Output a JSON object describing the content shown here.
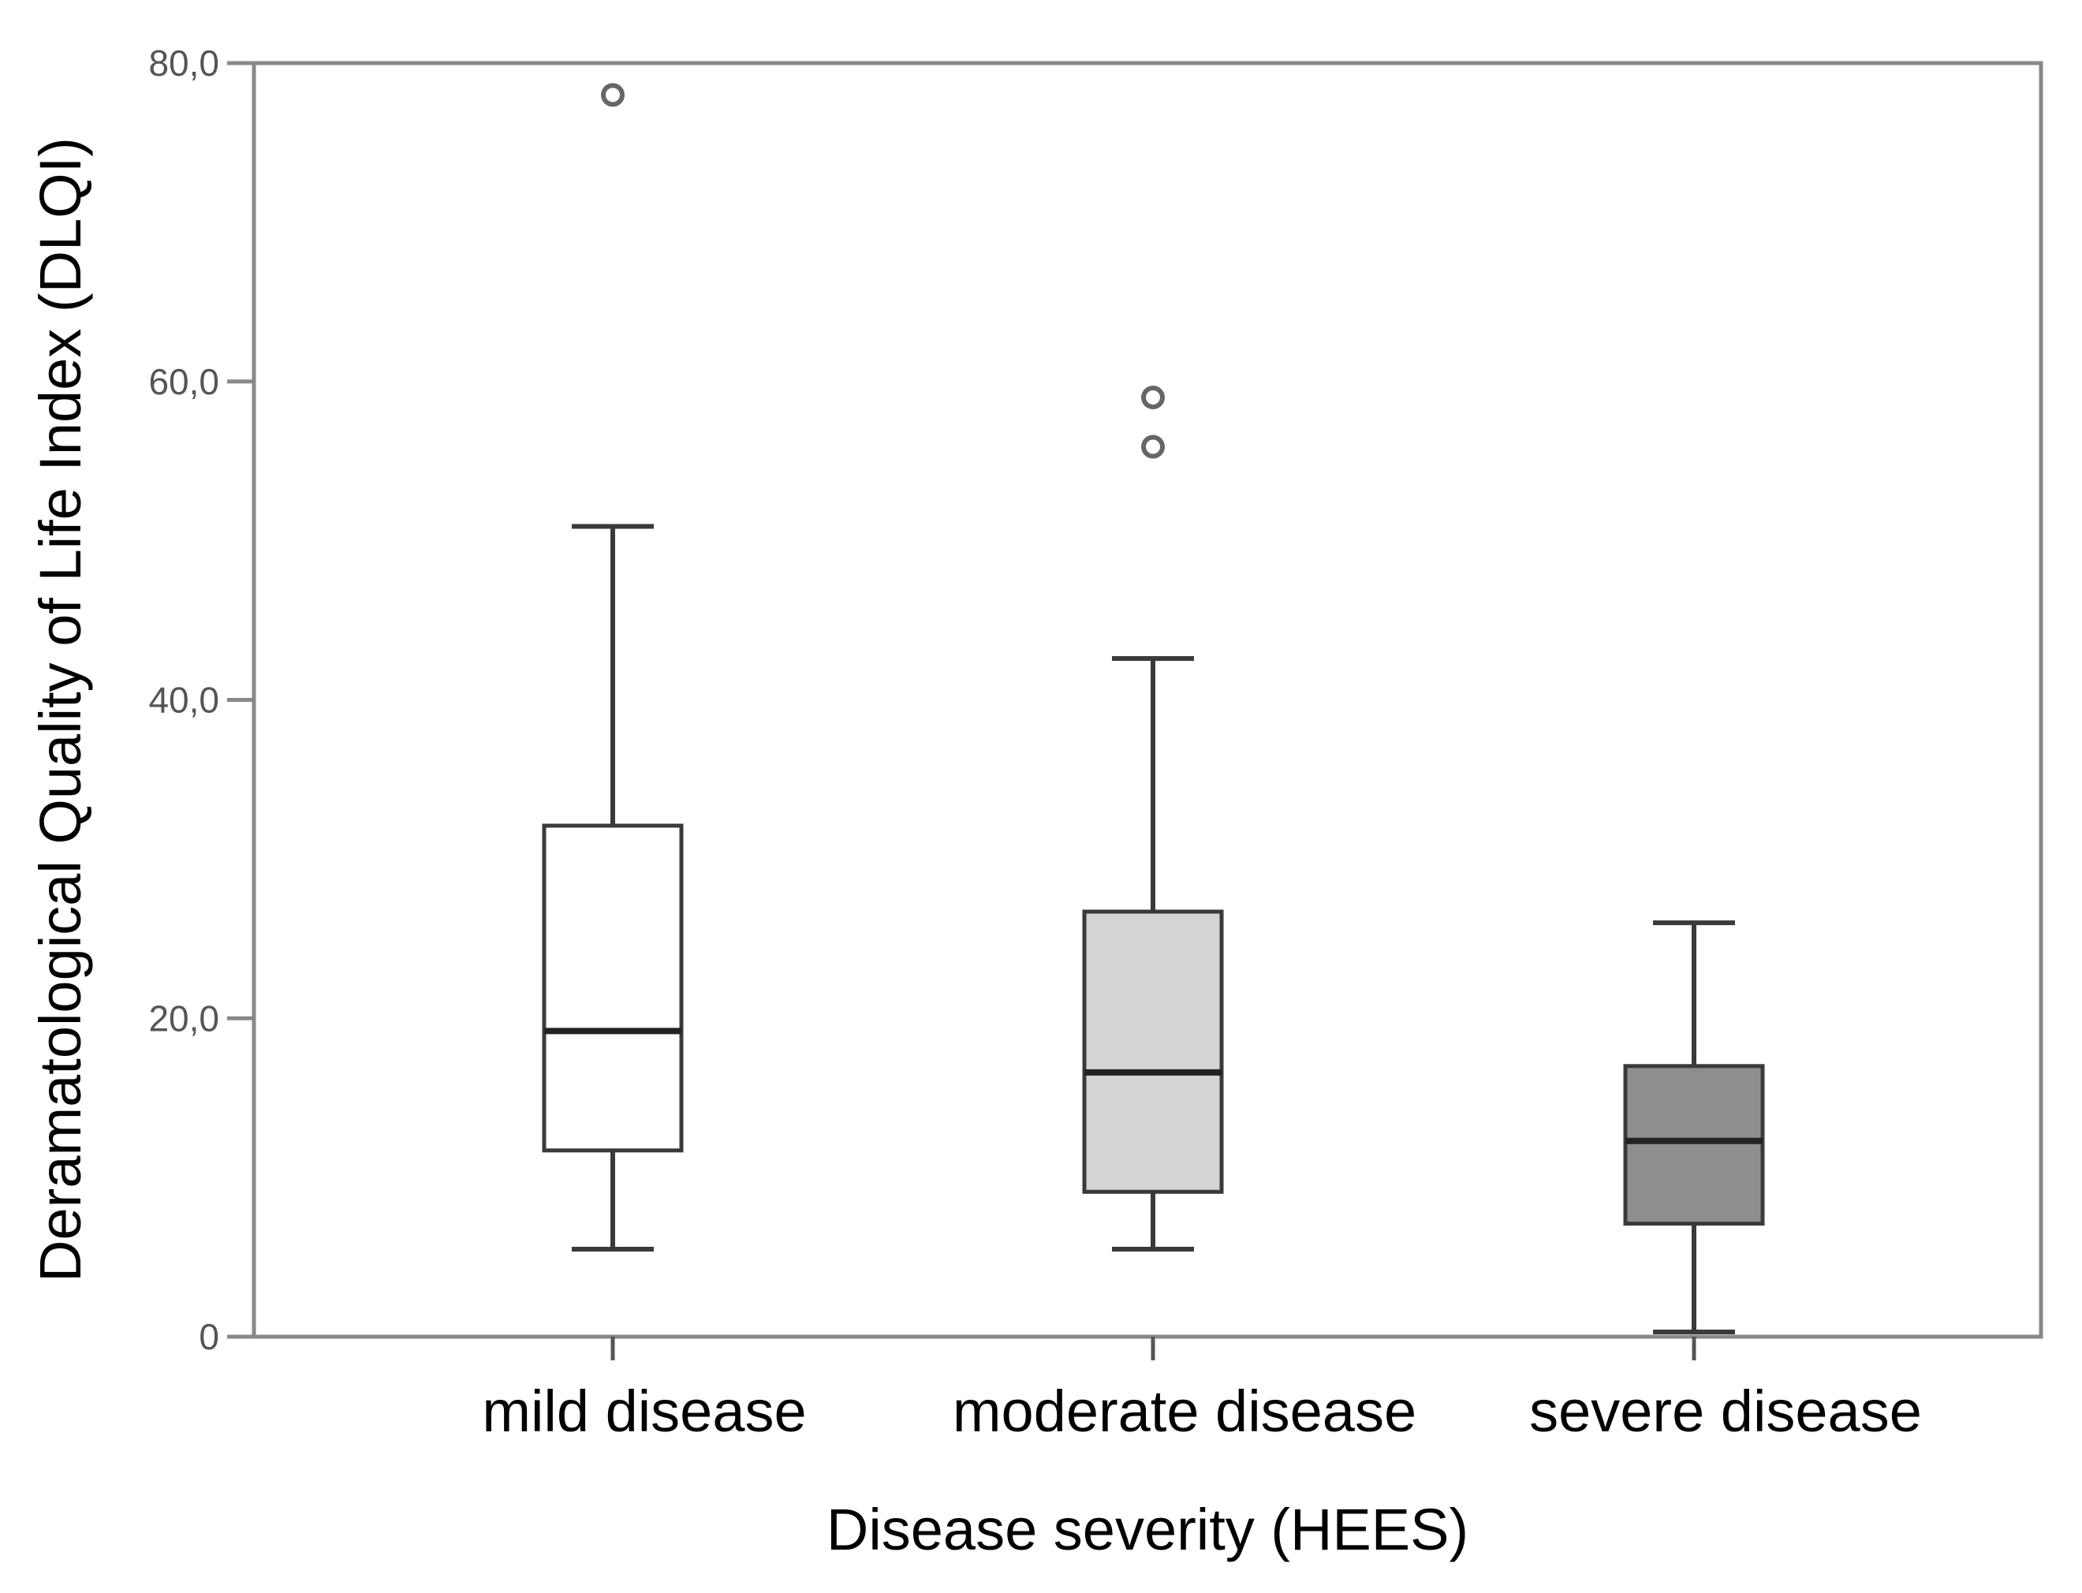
{
  "chart_data": {
    "type": "boxplot",
    "xlabel": "Disease severity (HEES)",
    "ylabel": "Deramatological Quality of Life Index (DLQI)",
    "ylim": [
      0,
      80
    ],
    "yticks": [
      0,
      20,
      40,
      60,
      80
    ],
    "ytick_labels": [
      "0",
      "20,0",
      "40,0",
      "60,0",
      "80,0"
    ],
    "grid": false,
    "categories": [
      "mild disease",
      "moderate disease",
      "severe disease"
    ],
    "groups": [
      {
        "name": "mild disease",
        "whisker_low": 5.5,
        "q1": 11.7,
        "median": 19.2,
        "q3": 32.1,
        "whisker_high": 50.9,
        "outliers": [
          78.0
        ],
        "color": "#ffffff"
      },
      {
        "name": "moderate disease",
        "whisker_low": 5.5,
        "q1": 9.1,
        "median": 16.6,
        "q3": 26.7,
        "whisker_high": 42.6,
        "outliers": [
          59.0,
          55.9
        ],
        "color": "#d4d4d4"
      },
      {
        "name": "severe disease",
        "whisker_low": 0.3,
        "q1": 7.1,
        "median": 12.3,
        "q3": 17.0,
        "whisker_high": 26.0,
        "outliers": [],
        "color": "#8e8e8e"
      }
    ]
  }
}
